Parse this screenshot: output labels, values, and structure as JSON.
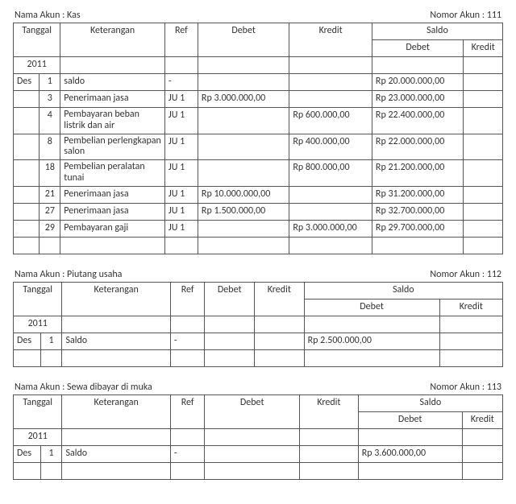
{
  "labels": {
    "nama_akun_prefix": "Nama Akun :",
    "nomor_akun_prefix": "Nomor Akun :",
    "tanggal": "Tanggal",
    "keterangan": "Keterangan",
    "ref": "Ref",
    "debet": "Debet",
    "kredit": "Kredit",
    "saldo": "Saldo"
  },
  "ledgers": [
    {
      "account_name": "Kas",
      "account_number": "111",
      "year": "2011",
      "month": "Des",
      "col_widths": {
        "desc": 120,
        "debet": 105,
        "kredit": 95,
        "sdebet": 105,
        "skredit": 45
      },
      "rows": [
        {
          "day": "1",
          "desc": "saldo",
          "ref": "-",
          "debet": "",
          "kredit": "",
          "sdebet": "Rp 20.000.000,00",
          "skredit": ""
        },
        {
          "day": "3",
          "desc": "Penerimaan jasa",
          "ref": "JU 1",
          "debet": "Rp 3.000.000,00",
          "kredit": "",
          "sdebet": "Rp 23.000.000,00",
          "skredit": ""
        },
        {
          "day": "4",
          "desc": "Pembayaran beban listrik dan air",
          "ref": "JU 1",
          "debet": "",
          "kredit": "Rp 600.000,00",
          "sdebet": "Rp 22.400.000,00",
          "skredit": "",
          "wrap": true
        },
        {
          "day": "8",
          "desc": "Pembelian perlengkapan salon",
          "ref": "JU 1",
          "debet": "",
          "kredit": "Rp 400.000,00",
          "sdebet": "Rp 22.000.000,00",
          "skredit": "",
          "wrap": true
        },
        {
          "day": "18",
          "desc": "Pembelian peralatan tunai",
          "ref": "JU 1",
          "debet": "",
          "kredit": "Rp 800.000,00",
          "sdebet": "Rp 21.200.000,00",
          "skredit": "",
          "wrap": true
        },
        {
          "day": "21",
          "desc": "Penerimaan jasa",
          "ref": "JU 1",
          "debet": "Rp 10.000.000,00",
          "kredit": "",
          "sdebet": "Rp 31.200.000,00",
          "skredit": ""
        },
        {
          "day": "27",
          "desc": "Penerimaan jasa",
          "ref": "JU 1",
          "debet": "Rp 1.500.000,00",
          "kredit": "",
          "sdebet": "Rp 32.700.000,00",
          "skredit": ""
        },
        {
          "day": "29",
          "desc": "Pembayaran gaji",
          "ref": "JU 1",
          "debet": "",
          "kredit": "Rp 3.000.000,00",
          "sdebet": "Rp 29.700.000,00",
          "skredit": ""
        }
      ],
      "trailing_blank_rows": 1
    },
    {
      "account_name": "Piutang usaha",
      "account_number": "112",
      "year": "2011",
      "month": "Des",
      "col_widths": {
        "desc": 120,
        "debet": 55,
        "kredit": 55,
        "sdebet": 150,
        "skredit": 70
      },
      "rows": [
        {
          "day": "1",
          "desc": "Saldo",
          "ref": "-",
          "debet": "",
          "kredit": "",
          "sdebet": "Rp 2.500.000,00",
          "skredit": ""
        }
      ],
      "trailing_blank_rows": 1
    },
    {
      "account_name": "Sewa dibayar di muka",
      "account_number": "113",
      "year": "2011",
      "month": "Des",
      "col_widths": {
        "desc": 120,
        "debet": 105,
        "kredit": 65,
        "sdebet": 115,
        "skredit": 45
      },
      "rows": [
        {
          "day": "1",
          "desc": "Saldo",
          "ref": "-",
          "debet": "",
          "kredit": "",
          "sdebet": "Rp 3.600.000,00",
          "skredit": ""
        }
      ],
      "trailing_blank_rows": 1
    }
  ]
}
